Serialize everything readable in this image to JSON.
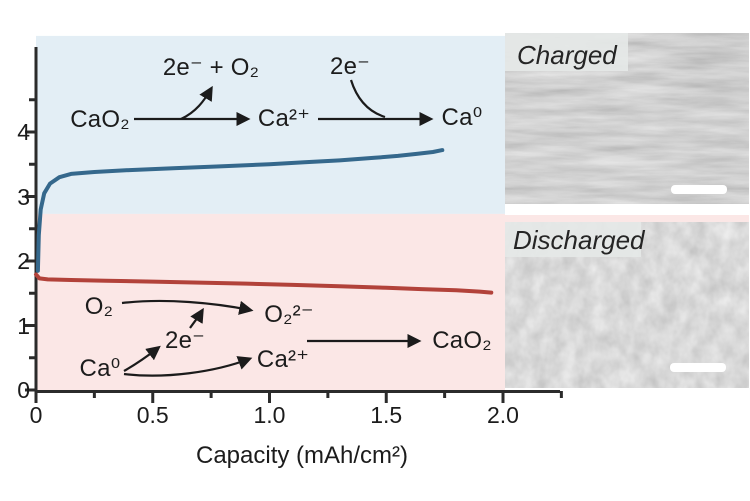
{
  "figure": {
    "background": "#ffffff",
    "text_color": "#1c1c1c"
  },
  "chart_data": {
    "type": "line",
    "title": "",
    "xlabel": "Capacity (mAh/cm²)",
    "ylabel": "",
    "xlim": [
      0,
      2.25
    ],
    "ylim": [
      0,
      5.45
    ],
    "grid": false,
    "legend": "none",
    "xaxis": {
      "major_ticks": [
        0,
        0.5,
        1.0,
        1.5,
        2.0
      ],
      "minor_ticks": [
        0.25,
        0.75,
        1.25,
        1.75,
        2.25
      ],
      "labels": [
        "0",
        "0.5",
        "1.0",
        "1.5",
        "2.0"
      ]
    },
    "yaxis": {
      "major_ticks": [
        0,
        1,
        2,
        3,
        4
      ],
      "minor_ticks": [
        0.5,
        1.5,
        2.5,
        3.5,
        4.5
      ],
      "labels": [
        "0",
        "1",
        "2",
        "3",
        "4"
      ]
    },
    "regions": [
      {
        "name": "charge-region",
        "color": "#e3eef5",
        "y_from": 2.73,
        "y_to": 5.49
      },
      {
        "name": "discharge-region",
        "color": "#fbe7e6",
        "y_from": 0,
        "y_to": 2.73
      }
    ],
    "series": [
      {
        "name": "charge",
        "color": "#35688c",
        "width": 4,
        "points": [
          [
            0.008,
            1.85
          ],
          [
            0.012,
            2.4
          ],
          [
            0.02,
            2.8
          ],
          [
            0.035,
            3.05
          ],
          [
            0.06,
            3.2
          ],
          [
            0.1,
            3.3
          ],
          [
            0.15,
            3.35
          ],
          [
            0.25,
            3.38
          ],
          [
            0.4,
            3.41
          ],
          [
            0.6,
            3.44
          ],
          [
            0.8,
            3.47
          ],
          [
            1.0,
            3.5
          ],
          [
            1.15,
            3.53
          ],
          [
            1.3,
            3.56
          ],
          [
            1.45,
            3.6
          ],
          [
            1.55,
            3.63
          ],
          [
            1.63,
            3.66
          ],
          [
            1.7,
            3.69
          ],
          [
            1.74,
            3.72
          ]
        ]
      },
      {
        "name": "discharge",
        "color": "#b2423a",
        "width": 4,
        "points": [
          [
            0.0,
            1.79
          ],
          [
            0.015,
            1.73
          ],
          [
            0.05,
            1.715
          ],
          [
            0.15,
            1.705
          ],
          [
            0.3,
            1.695
          ],
          [
            0.5,
            1.68
          ],
          [
            0.7,
            1.665
          ],
          [
            0.9,
            1.65
          ],
          [
            1.1,
            1.63
          ],
          [
            1.3,
            1.61
          ],
          [
            1.5,
            1.585
          ],
          [
            1.65,
            1.565
          ],
          [
            1.8,
            1.545
          ],
          [
            1.9,
            1.525
          ],
          [
            1.95,
            1.51
          ]
        ]
      }
    ]
  },
  "charge_reaction": {
    "reactant": "CaO₂",
    "released": "2e⁻ + O₂",
    "intermediate": "Ca²⁺",
    "electrons_in": "2e⁻",
    "product": "Ca⁰"
  },
  "discharge_reaction": {
    "oxygen": "O₂",
    "peroxide": "O₂²⁻",
    "electrons": "2e⁻",
    "calcium_metal": "Ca⁰",
    "calcium_ion": "Ca²⁺",
    "product": "CaO₂"
  },
  "sem": {
    "charged_label": "Charged",
    "discharged_label": "Discharged"
  }
}
